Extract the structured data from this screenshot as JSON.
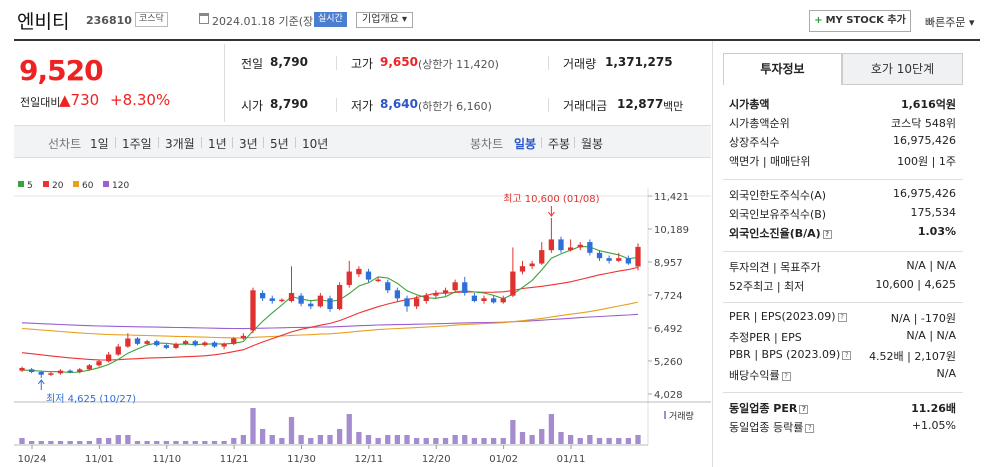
{
  "header": {
    "stock_name": "엔비티",
    "stock_code": "236810",
    "market_tag": "코스닥",
    "date_text": "2024.01.18  기준(장마감)",
    "realtime_label": "실시간",
    "corp_info_label": "기업개요 ▾",
    "mystock_label": "MY STOCK 추가",
    "mystock_plus": "+",
    "quick_order_label": "빠른주문 ▾"
  },
  "price": {
    "current": "9,520",
    "change_label": "전일대비",
    "change_value": "▲730",
    "change_pct": "+8.30%"
  },
  "summary": {
    "prev_label": "전일",
    "prev_value": "8,790",
    "high_label": "고가",
    "high_value": "9,650",
    "upper_limit": "(상한가 11,420)",
    "volume_label": "거래량",
    "volume_value": "1,371,275",
    "open_label": "시가",
    "open_value": "8,790",
    "low_label": "저가",
    "low_value": "8,640",
    "lower_limit": "(하한가 6,160)",
    "amount_label": "거래대금",
    "amount_value": "12,877",
    "amount_unit": "백만"
  },
  "period_bar": {
    "line_label": "선차트",
    "line_periods": [
      "1일",
      "1주일",
      "3개월",
      "1년",
      "3년",
      "5년",
      "10년"
    ],
    "candle_label": "봉차트",
    "candle_periods": [
      "일봉",
      "주봉",
      "월봉"
    ],
    "active_candle": "일봉"
  },
  "chart_data": {
    "type": "candlestick",
    "legend": [
      {
        "name": "5",
        "color": "#3aa33a"
      },
      {
        "name": "20",
        "color": "#e33"
      },
      {
        "name": "60",
        "color": "#e8a020"
      },
      {
        "name": "120",
        "color": "#9a5fd0"
      }
    ],
    "y_ticks": [
      "11,421",
      "10,189",
      "8,957",
      "7,724",
      "6,492",
      "5,260",
      "4,028"
    ],
    "ylim": [
      4028,
      11421
    ],
    "x_ticks": [
      "10/24",
      "11/01",
      "11/10",
      "11/21",
      "11/30",
      "12/11",
      "12/20",
      "01/02",
      "01/11"
    ],
    "high_annotation": "최고 10,600 (01/08)",
    "low_annotation": "최저 4,625 (10/27)",
    "volume_label": "거래량",
    "candles": [
      [
        4900,
        5000,
        4850,
        5050
      ],
      [
        4950,
        4850,
        4800,
        5000
      ],
      [
        4850,
        4750,
        4625,
        4900
      ],
      [
        4750,
        4800,
        4700,
        4850
      ],
      [
        4800,
        4900,
        4750,
        4950
      ],
      [
        4900,
        4850,
        4800,
        4950
      ],
      [
        4850,
        4950,
        4800,
        5000
      ],
      [
        4950,
        5100,
        4900,
        5150
      ],
      [
        5100,
        5250,
        5050,
        5300
      ],
      [
        5250,
        5500,
        5200,
        5600
      ],
      [
        5500,
        5800,
        5450,
        5900
      ],
      [
        5800,
        6100,
        5750,
        6300
      ],
      [
        6100,
        5900,
        5850,
        6150
      ],
      [
        5900,
        6000,
        5850,
        6050
      ],
      [
        6000,
        5850,
        5800,
        6050
      ],
      [
        5850,
        5750,
        5700,
        5900
      ],
      [
        5750,
        5900,
        5700,
        5950
      ],
      [
        5900,
        6000,
        5850,
        6050
      ],
      [
        6000,
        5850,
        5800,
        6050
      ],
      [
        5850,
        5950,
        5800,
        6000
      ],
      [
        5950,
        5800,
        5750,
        6000
      ],
      [
        5800,
        5900,
        5700,
        5950
      ],
      [
        5900,
        6100,
        5850,
        6150
      ],
      [
        6100,
        6200,
        6050,
        6300
      ],
      [
        6400,
        7900,
        6300,
        8000
      ],
      [
        7800,
        7600,
        7500,
        7900
      ],
      [
        7600,
        7500,
        7400,
        7700
      ],
      [
        7500,
        7550,
        7450,
        7600
      ],
      [
        7500,
        7800,
        7450,
        8800
      ],
      [
        7700,
        7400,
        7300,
        7800
      ],
      [
        7400,
        7300,
        7200,
        7500
      ],
      [
        7300,
        7700,
        7250,
        7800
      ],
      [
        7600,
        7200,
        7100,
        7700
      ],
      [
        7200,
        8100,
        7150,
        8200
      ],
      [
        8100,
        8600,
        8000,
        9000
      ],
      [
        8500,
        8700,
        8400,
        8800
      ],
      [
        8600,
        8300,
        8200,
        8700
      ],
      [
        8300,
        8300,
        8200,
        8400
      ],
      [
        8200,
        7900,
        7800,
        8300
      ],
      [
        7900,
        7600,
        7500,
        8000
      ],
      [
        7600,
        7300,
        7100,
        7700
      ],
      [
        7300,
        7600,
        7200,
        7700
      ],
      [
        7500,
        7700,
        7400,
        7800
      ],
      [
        7700,
        7800,
        7600,
        7900
      ],
      [
        7800,
        7900,
        7700,
        8000
      ],
      [
        7900,
        8200,
        7850,
        8300
      ],
      [
        8200,
        7800,
        7700,
        8400
      ],
      [
        7700,
        7500,
        7450,
        7800
      ],
      [
        7500,
        7600,
        7400,
        7700
      ],
      [
        7600,
        7450,
        7400,
        7700
      ],
      [
        7450,
        7600,
        7400,
        7700
      ],
      [
        7700,
        8600,
        7650,
        9500
      ],
      [
        8600,
        8800,
        8500,
        9000
      ],
      [
        8800,
        8900,
        8700,
        9000
      ],
      [
        8900,
        9400,
        8850,
        9700
      ],
      [
        9400,
        9800,
        9300,
        10600
      ],
      [
        9800,
        9400,
        9300,
        9900
      ],
      [
        9400,
        9500,
        9350,
        9800
      ],
      [
        9500,
        9600,
        9400,
        9700
      ],
      [
        9700,
        9300,
        9200,
        9800
      ],
      [
        9300,
        9100,
        9000,
        9400
      ],
      [
        9100,
        9000,
        8900,
        9200
      ],
      [
        9000,
        9100,
        8950,
        9300
      ],
      [
        9100,
        8900,
        8850,
        9200
      ],
      [
        8790,
        9520,
        8640,
        9650
      ]
    ],
    "volumes": [
      2,
      1,
      1,
      1,
      1,
      1,
      1,
      1,
      2,
      2,
      3,
      3,
      1,
      1,
      1,
      1,
      1,
      1,
      1,
      1,
      1,
      1,
      2,
      3,
      12,
      5,
      3,
      2,
      9,
      3,
      2,
      3,
      3,
      5,
      10,
      4,
      3,
      2,
      3,
      3,
      3,
      2,
      2,
      2,
      2,
      3,
      3,
      2,
      2,
      2,
      2,
      8,
      4,
      3,
      5,
      10,
      4,
      3,
      2,
      3,
      2,
      2,
      2,
      2,
      3
    ]
  },
  "right_panel": {
    "tab_invest": "투자정보",
    "tab_hoga": "호가 10단계",
    "rows1": [
      {
        "label": "시가총액",
        "value": "1,616억원",
        "bold": true
      },
      {
        "label": "시가총액순위",
        "value": "코스닥 548위"
      },
      {
        "label": "상장주식수",
        "value": "16,975,426"
      },
      {
        "label": "액면가 | 매매단위",
        "value": "100원 | 1주"
      }
    ],
    "rows2": [
      {
        "label": "외국인한도주식수(A)",
        "value": "16,975,426"
      },
      {
        "label": "외국인보유주식수(B)",
        "value": "175,534"
      },
      {
        "label": "외국인소진율(B/A)",
        "value": "1.03%",
        "bold": true
      }
    ],
    "rows3": [
      {
        "label": "투자의견 | 목표주가",
        "value": "N/A  |  N/A"
      },
      {
        "label": "52주최고 | 최저",
        "value": "10,600  |  4,625"
      }
    ],
    "rows4": [
      {
        "label": "PER | EPS(2023.09)",
        "value": "N/A  |  -170원"
      },
      {
        "label": "추정PER | EPS",
        "value": "N/A  |  N/A"
      },
      {
        "label": "PBR | BPS (2023.09)",
        "value": "4.52배  |  2,107원"
      },
      {
        "label": "배당수익률",
        "value": "N/A"
      }
    ],
    "rows5": [
      {
        "label": "동일업종 PER",
        "value": "11.26배",
        "bold": true
      },
      {
        "label": "동일업종 등락률",
        "value": "+1.05%",
        "red": true
      }
    ]
  }
}
